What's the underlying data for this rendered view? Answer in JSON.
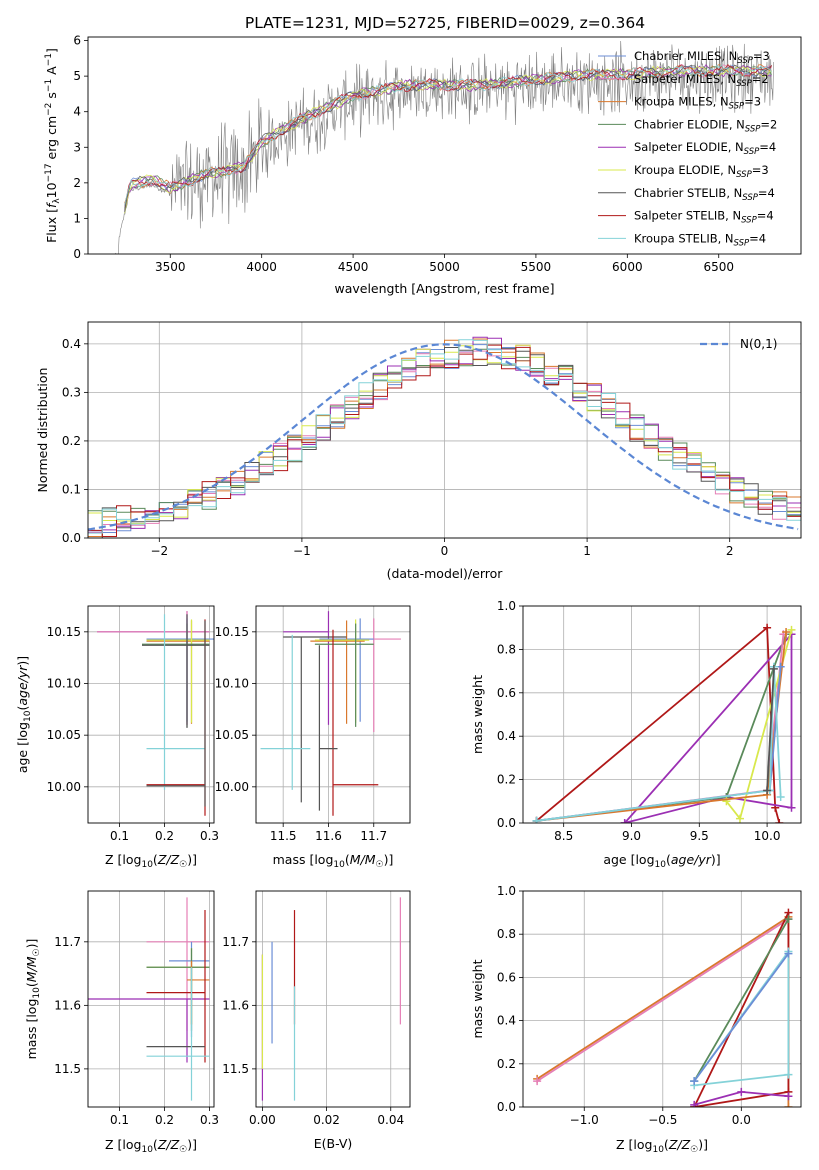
{
  "title": "PLATE=1231, MJD=52725, FIBERID=0029, z=0.364",
  "colors": [
    "#6b8ed6",
    "#e57fb6",
    "#d9782d",
    "#5a8a5a",
    "#9b2fb3",
    "#d8e84c",
    "#555555",
    "#b01818",
    "#84d2d8"
  ],
  "chart_data": [
    {
      "id": "spectrum",
      "type": "line",
      "xlabel": "wavelength [Angstrom, rest frame]",
      "ylabel": "Flux [f_λ 10^-17 erg cm^-2 s^-1 A^-1]",
      "xlim": [
        3050,
        6950
      ],
      "ylim": [
        0,
        6.1
      ],
      "xticks": [
        3500,
        4000,
        4500,
        5000,
        5500,
        6000,
        6500
      ],
      "yticks": [
        0,
        1,
        2,
        3,
        4,
        5,
        6
      ],
      "data_color": "#808080",
      "data_continuum": {
        "x": [
          3200,
          3280,
          3400,
          3500,
          3700,
          3900,
          4000,
          4200,
          4500,
          4800,
          5000,
          5200,
          5500,
          5800,
          6000,
          6300,
          6500,
          6800
        ],
        "y": [
          0.0,
          1.8,
          1.95,
          1.7,
          2.1,
          2.3,
          3.0,
          3.6,
          4.3,
          4.6,
          4.6,
          4.6,
          4.75,
          4.9,
          4.9,
          5.0,
          5.0,
          5.0
        ]
      },
      "legend": [
        {
          "label": "Chabrier MILES, N",
          "sub": "SSP",
          "suffix": "=3",
          "color": "#6b8ed6"
        },
        {
          "label": "Salpeter MILES, N",
          "sub": "SSP",
          "suffix": "=2",
          "color": "#e57fb6"
        },
        {
          "label": "Kroupa MILES, N",
          "sub": "SSP",
          "suffix": "=3",
          "color": "#d9782d"
        },
        {
          "label": "Chabrier ELODIE, N",
          "sub": "SSP",
          "suffix": "=2",
          "color": "#5a8a5a"
        },
        {
          "label": "Salpeter ELODIE, N",
          "sub": "SSP",
          "suffix": "=4",
          "color": "#9b2fb3"
        },
        {
          "label": "Kroupa ELODIE, N",
          "sub": "SSP",
          "suffix": "=3",
          "color": "#d8e84c"
        },
        {
          "label": "Chabrier STELIB, N",
          "sub": "SSP",
          "suffix": "=4",
          "color": "#555555"
        },
        {
          "label": "Salpeter STELIB, N",
          "sub": "SSP",
          "suffix": "=4",
          "color": "#b01818"
        },
        {
          "label": "Kroupa STELIB, N",
          "sub": "SSP",
          "suffix": "=4",
          "color": "#84d2d8"
        }
      ]
    },
    {
      "id": "residuals",
      "type": "histogram",
      "xlabel": "(data-model)/error",
      "ylabel": "Normed distribution",
      "xlim": [
        -2.5,
        2.5
      ],
      "ylim": [
        0,
        0.445
      ],
      "xticks": [
        -2,
        -1,
        0,
        1,
        2
      ],
      "yticks": [
        0.0,
        0.1,
        0.2,
        0.3,
        0.4
      ],
      "bin_width": 0.1,
      "gaussian": {
        "label": "N(0,1)",
        "color": "#5b87d4"
      }
    },
    {
      "id": "age_vs_Z",
      "type": "errorbar",
      "xlabel": "Z [log10(Z/Z☉)]",
      "ylabel": "age [log10(age/yr)]",
      "xlim": [
        0.03,
        0.31
      ],
      "ylim": [
        9.965,
        10.175
      ],
      "xticks": [
        0.1,
        0.2,
        0.3
      ],
      "yticks": [
        10.0,
        10.05,
        10.1,
        10.15
      ],
      "points": [
        {
          "x": 0.25,
          "y": 10.15,
          "xerr": [
            0.2,
            0.05
          ],
          "yerr": [
            0.09,
            0.02
          ],
          "color": "#9b2fb3"
        },
        {
          "x": 0.25,
          "y": 10.15,
          "xerr": [
            0.2,
            0.05
          ],
          "yerr": [
            0.09,
            0.02
          ],
          "color": "#e57fb6"
        },
        {
          "x": 0.25,
          "y": 10.143,
          "xerr": [
            0.09,
            0.06
          ],
          "yerr": [
            0.08,
            0.02
          ],
          "color": "#6b8ed6"
        },
        {
          "x": 0.26,
          "y": 10.141,
          "xerr": [
            0.1,
            0.04
          ],
          "yerr": [
            0.08,
            0.02
          ],
          "color": "#d9782d"
        },
        {
          "x": 0.26,
          "y": 10.142,
          "xerr": [
            0.1,
            0.04
          ],
          "yerr": [
            0.08,
            0.02
          ],
          "color": "#d8e84c"
        },
        {
          "x": 0.25,
          "y": 10.138,
          "xerr": [
            0.1,
            0.05
          ],
          "yerr": [
            0.08,
            0.02
          ],
          "color": "#5a8a5a"
        },
        {
          "x": 0.25,
          "y": 10.137,
          "xerr": [
            0.1,
            0.05
          ],
          "yerr": [
            0.08,
            0.03
          ],
          "color": "#555555"
        },
        {
          "x": 0.2,
          "y": 10.037,
          "xerr": [
            0.04,
            0.09
          ],
          "yerr": [
            0.04,
            0.13
          ],
          "color": "#84d2d8"
        },
        {
          "x": 0.29,
          "y": 10.002,
          "xerr": [
            0.13,
            0.0
          ],
          "yerr": [
            0.03,
            0.16
          ],
          "color": "#b01818"
        },
        {
          "x": 0.29,
          "y": 10.001,
          "xerr": [
            0.13,
            0.0
          ],
          "yerr": [
            0.02,
            0.16
          ],
          "color": "#555555"
        }
      ]
    },
    {
      "id": "age_vs_mass",
      "type": "errorbar",
      "xlabel": "mass [log10(M/M☉)]",
      "ylabel": "",
      "xlim": [
        11.44,
        11.78
      ],
      "ylim": [
        9.965,
        10.175
      ],
      "xticks": [
        11.5,
        11.6,
        11.7
      ],
      "yticks": [
        10.0,
        10.05,
        10.1,
        10.15
      ],
      "points": [
        {
          "x": 11.6,
          "y": 10.15,
          "xerr": [
            0.1,
            0.0
          ],
          "yerr": [
            0.09,
            0.02
          ],
          "color": "#9b2fb3"
        },
        {
          "x": 11.7,
          "y": 10.143,
          "xerr": [
            0.1,
            0.06
          ],
          "yerr": [
            0.09,
            0.02
          ],
          "color": "#e57fb6"
        },
        {
          "x": 11.67,
          "y": 10.143,
          "xerr": [
            0.09,
            0.03
          ],
          "yerr": [
            0.08,
            0.02
          ],
          "color": "#6b8ed6"
        },
        {
          "x": 11.64,
          "y": 10.141,
          "xerr": [
            0.08,
            0.04
          ],
          "yerr": [
            0.08,
            0.02
          ],
          "color": "#d9782d"
        },
        {
          "x": 11.66,
          "y": 10.142,
          "xerr": [
            0.09,
            0.03
          ],
          "yerr": [
            0.08,
            0.02
          ],
          "color": "#d8e84c"
        },
        {
          "x": 11.66,
          "y": 10.138,
          "xerr": [
            0.09,
            0.04
          ],
          "yerr": [
            0.08,
            0.02
          ],
          "color": "#5a8a5a"
        },
        {
          "x": 11.54,
          "y": 10.145,
          "xerr": [
            0.04,
            0.1
          ],
          "yerr": [
            0.16,
            0.0
          ],
          "color": "#555555"
        },
        {
          "x": 11.52,
          "y": 10.037,
          "xerr": [
            0.07,
            0.04
          ],
          "yerr": [
            0.04,
            0.11
          ],
          "color": "#84d2d8"
        },
        {
          "x": 11.61,
          "y": 10.002,
          "xerr": [
            0.0,
            0.1
          ],
          "yerr": [
            0.03,
            0.15
          ],
          "color": "#b01818"
        },
        {
          "x": 11.58,
          "y": 10.037,
          "xerr": [
            0.0,
            0.04
          ],
          "yerr": [
            0.06,
            0.1
          ],
          "color": "#555555"
        }
      ]
    },
    {
      "id": "weight_vs_age",
      "type": "line",
      "xlabel": "age [log10(age/yr)]",
      "ylabel": "mass weight",
      "xlim": [
        8.2,
        10.25
      ],
      "ylim": [
        0,
        1
      ],
      "xticks": [
        8.5,
        9.0,
        9.5,
        10.0
      ],
      "yticks": [
        0.0,
        0.2,
        0.4,
        0.6,
        0.8,
        1.0
      ],
      "series": [
        {
          "color": "#b01818",
          "x": [
            8.3,
            10.0,
            10.06,
            10.09
          ],
          "y": [
            0.01,
            0.9,
            0.07,
            0.0
          ]
        },
        {
          "color": "#9b2fb3",
          "x": [
            8.95,
            10.18,
            10.18,
            9.7,
            8.95
          ],
          "y": [
            0.0,
            0.87,
            0.07,
            0.12,
            0.0
          ]
        },
        {
          "color": "#5a8a5a",
          "x": [
            8.3,
            9.7,
            10.14
          ],
          "y": [
            0.01,
            0.12,
            0.87
          ]
        },
        {
          "color": "#e57fb6",
          "x": [
            8.3,
            10.0,
            10.12
          ],
          "y": [
            0.01,
            0.15,
            0.87
          ]
        },
        {
          "color": "#d8e84c",
          "x": [
            9.7,
            9.8,
            10.18
          ],
          "y": [
            0.1,
            0.02,
            0.89
          ]
        },
        {
          "color": "#d9782d",
          "x": [
            8.3,
            10.0,
            10.14
          ],
          "y": [
            0.01,
            0.13,
            0.88
          ]
        },
        {
          "color": "#6b8ed6",
          "x": [
            8.3,
            10.02,
            10.1
          ],
          "y": [
            0.01,
            0.15,
            0.72
          ]
        },
        {
          "color": "#84d2d8",
          "x": [
            8.3,
            10.02,
            10.05,
            10.1
          ],
          "y": [
            0.01,
            0.15,
            0.72,
            0.12
          ]
        },
        {
          "color": "#555555",
          "x": [
            10.0,
            10.05
          ],
          "y": [
            0.15,
            0.71
          ]
        }
      ]
    },
    {
      "id": "mass_vs_Z",
      "type": "errorbar",
      "xlabel": "Z [log10(Z/Z☉)]",
      "ylabel": "mass [log10(M/M☉)]",
      "xlim": [
        0.03,
        0.31
      ],
      "ylim": [
        11.44,
        11.78
      ],
      "xticks": [
        0.1,
        0.2,
        0.3
      ],
      "yticks": [
        11.5,
        11.6,
        11.7
      ],
      "points": [
        {
          "x": 0.25,
          "y": 11.7,
          "xerr": [
            0.09,
            0.05
          ],
          "yerr": [
            0.14,
            0.07
          ],
          "color": "#e57fb6"
        },
        {
          "x": 0.26,
          "y": 11.67,
          "xerr": [
            0.05,
            0.04
          ],
          "yerr": [
            0.12,
            0.03
          ],
          "color": "#6b8ed6"
        },
        {
          "x": 0.26,
          "y": 11.66,
          "xerr": [
            0.1,
            0.04
          ],
          "yerr": [
            0.09,
            0.03
          ],
          "color": "#d8e84c"
        },
        {
          "x": 0.26,
          "y": 11.66,
          "xerr": [
            0.1,
            0.04
          ],
          "yerr": [
            0.1,
            0.03
          ],
          "color": "#5a8a5a"
        },
        {
          "x": 0.26,
          "y": 11.64,
          "xerr": [
            0.01,
            0.04
          ],
          "yerr": [
            0.07,
            0.03
          ],
          "color": "#d9782d"
        },
        {
          "x": 0.25,
          "y": 11.61,
          "xerr": [
            0.22,
            0.05
          ],
          "yerr": [
            0.1,
            0.0
          ],
          "color": "#9b2fb3"
        },
        {
          "x": 0.29,
          "y": 11.62,
          "xerr": [
            0.13,
            0.0
          ],
          "yerr": [
            0.11,
            0.13
          ],
          "color": "#b01818"
        },
        {
          "x": 0.16,
          "y": 11.535,
          "xerr": [
            0.0,
            0.13
          ],
          "yerr": [
            0.0,
            0.0
          ],
          "color": "#555555"
        },
        {
          "x": 0.26,
          "y": 11.52,
          "xerr": [
            0.1,
            0.04
          ],
          "yerr": [
            0.07,
            0.14
          ],
          "color": "#84d2d8"
        }
      ]
    },
    {
      "id": "mass_vs_ebv",
      "type": "errorbar",
      "xlabel": "E(B-V)",
      "ylabel": "",
      "xlim": [
        -0.002,
        0.046
      ],
      "ylim": [
        11.44,
        11.78
      ],
      "xticks": [
        0.0,
        0.02,
        0.04
      ],
      "yticks": [
        11.5,
        11.6,
        11.7
      ],
      "points": [
        {
          "x": 0.0,
          "y": 11.52,
          "xerr": [
            0.0,
            0.0
          ],
          "yerr": [
            0.07,
            0.16
          ],
          "color": "#9b2fb3"
        },
        {
          "x": 0.0,
          "y": 11.6,
          "xerr": [
            0.0,
            0.0
          ],
          "yerr": [
            0.1,
            0.08
          ],
          "color": "#d8e84c"
        },
        {
          "x": 0.003,
          "y": 11.66,
          "xerr": [
            0.0,
            0.0
          ],
          "yerr": [
            0.12,
            0.04
          ],
          "color": "#6b8ed6"
        },
        {
          "x": 0.01,
          "y": 11.65,
          "xerr": [
            0.0,
            0.0
          ],
          "yerr": [
            0.08,
            0.1
          ],
          "color": "#b01818"
        },
        {
          "x": 0.01,
          "y": 11.56,
          "xerr": [
            0.0,
            0.0
          ],
          "yerr": [
            0.11,
            0.07
          ],
          "color": "#84d2d8"
        },
        {
          "x": 0.043,
          "y": 11.67,
          "xerr": [
            0.0,
            0.0
          ],
          "yerr": [
            0.1,
            0.1
          ],
          "color": "#e57fb6"
        }
      ]
    },
    {
      "id": "weight_vs_Z",
      "type": "line",
      "xlabel": "Z [log10(Z/Z☉)]",
      "ylabel": "mass weight",
      "xlim": [
        -1.39,
        0.38
      ],
      "ylim": [
        0,
        1
      ],
      "xticks": [
        -1.0,
        -0.5,
        0.0
      ],
      "yticks": [
        0.0,
        0.2,
        0.4,
        0.6,
        0.8,
        1.0
      ],
      "series": [
        {
          "color": "#d9782d",
          "x": [
            -1.3,
            0.3,
            0.3
          ],
          "y": [
            0.13,
            0.88,
            0.0
          ]
        },
        {
          "color": "#e57fb6",
          "x": [
            -1.3,
            0.3
          ],
          "y": [
            0.12,
            0.87
          ]
        },
        {
          "color": "#b01818",
          "x": [
            -0.3,
            0.3,
            0.3,
            -0.3
          ],
          "y": [
            0.0,
            0.9,
            0.07,
            0.0
          ]
        },
        {
          "color": "#5a8a5a",
          "x": [
            -0.3,
            0.3
          ],
          "y": [
            0.12,
            0.87
          ]
        },
        {
          "color": "#9b2fb3",
          "x": [
            -0.3,
            0.0,
            0.3
          ],
          "y": [
            0.01,
            0.07,
            0.05
          ]
        },
        {
          "color": "#84d2d8",
          "x": [
            -0.3,
            0.3,
            0.3,
            -0.3
          ],
          "y": [
            0.12,
            0.72,
            0.15,
            0.1
          ]
        },
        {
          "color": "#6b8ed6",
          "x": [
            -0.3,
            0.3
          ],
          "y": [
            0.12,
            0.71
          ]
        }
      ]
    }
  ]
}
